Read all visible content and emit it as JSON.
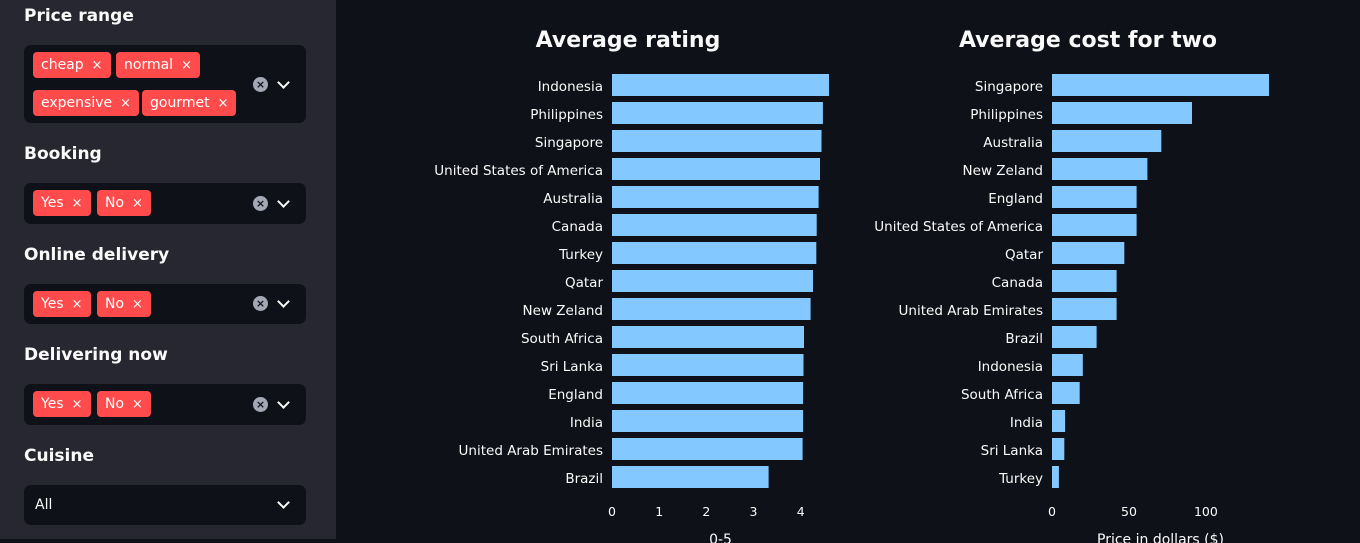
{
  "sidebar": {
    "filters": [
      {
        "label": "Price range",
        "chips": [
          "cheap",
          "normal",
          "expensive",
          "gourmet"
        ]
      },
      {
        "label": "Booking",
        "chips": [
          "Yes",
          "No"
        ]
      },
      {
        "label": "Online delivery",
        "chips": [
          "Yes",
          "No"
        ]
      },
      {
        "label": "Delivering now",
        "chips": [
          "Yes",
          "No"
        ]
      },
      {
        "label": "Cuisine",
        "value": "All"
      }
    ],
    "chip_remove_icon": "×",
    "clear_icon": "×"
  },
  "colors": {
    "bar": "#83c9ff",
    "chip": "#ff4b4b",
    "background": "#0e1117",
    "sidebar": "#262730"
  },
  "chart_data": [
    {
      "type": "bar",
      "orientation": "horizontal",
      "title": "Average rating",
      "xlabel": "0-5",
      "categories": [
        "Indonesia",
        "Philippines",
        "Singapore",
        "United States of America",
        "Australia",
        "Canada",
        "Turkey",
        "Qatar",
        "New Zeland",
        "South Africa",
        "Sri Lanka",
        "England",
        "India",
        "United Arab Emirates",
        "Brazil"
      ],
      "values": [
        4.6,
        4.47,
        4.44,
        4.41,
        4.38,
        4.34,
        4.33,
        4.26,
        4.21,
        4.07,
        4.06,
        4.05,
        4.05,
        4.04,
        3.32
      ],
      "xticks": [
        0,
        1,
        2,
        3,
        4
      ],
      "xlim": [
        0,
        4.6
      ]
    },
    {
      "type": "bar",
      "orientation": "horizontal",
      "title": "Average cost for two",
      "xlabel": "Price in dollars ($)",
      "categories": [
        "Singapore",
        "Philippines",
        "Australia",
        "New Zeland",
        "England",
        "United States of America",
        "Qatar",
        "Canada",
        "United Arab Emirates",
        "Brazil",
        "Indonesia",
        "South Africa",
        "India",
        "Sri Lanka",
        "Turkey"
      ],
      "values": [
        141,
        91,
        71,
        62,
        55,
        55,
        47,
        42,
        42,
        29,
        20,
        18,
        8.5,
        8,
        4.5
      ],
      "xticks": [
        0,
        50,
        100
      ],
      "xlim": [
        0,
        141
      ]
    }
  ]
}
